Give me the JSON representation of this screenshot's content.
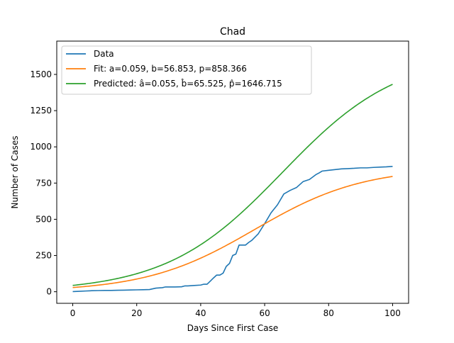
{
  "chart_data": {
    "type": "line",
    "title": "Chad",
    "xlabel": "Days Since First Case",
    "ylabel": "Number of Cases",
    "xlim": [
      -5,
      105
    ],
    "ylim": [
      -80,
      1730
    ],
    "x_ticks": [
      0,
      20,
      40,
      60,
      80,
      100
    ],
    "y_ticks": [
      0,
      250,
      500,
      750,
      1000,
      1250,
      1500
    ],
    "grid": false,
    "legend_position": "upper-left",
    "series": [
      {
        "name": "Data",
        "color": "#1f77b4",
        "x": [
          0,
          2,
          4,
          6,
          8,
          10,
          12,
          14,
          16,
          18,
          20,
          22,
          24,
          25,
          26,
          28,
          29,
          30,
          32,
          34,
          35,
          36,
          38,
          40,
          41,
          42,
          43,
          44,
          45,
          46,
          47,
          48,
          49,
          50,
          51,
          52,
          53,
          54,
          55,
          56,
          58,
          60,
          62,
          64,
          66,
          68,
          70,
          72,
          74,
          76,
          77,
          78,
          80,
          82,
          84,
          86,
          88,
          90,
          92,
          94,
          96,
          98,
          100
        ],
        "y": [
          1,
          3,
          5,
          7,
          8,
          9,
          9,
          10,
          11,
          12,
          13,
          14,
          15,
          20,
          25,
          28,
          33,
          33,
          33,
          34,
          40,
          40,
          43,
          46,
          52,
          52,
          73,
          95,
          115,
          115,
          128,
          175,
          195,
          250,
          260,
          322,
          322,
          322,
          340,
          355,
          400,
          470,
          545,
          600,
          675,
          700,
          720,
          760,
          775,
          808,
          820,
          833,
          838,
          843,
          848,
          850,
          852,
          855,
          855,
          858,
          860,
          862,
          865
        ]
      },
      {
        "name": "Fit: a=0.059, b=56.853, p=858.366",
        "color": "#ff7f0e",
        "logistic": {
          "a": 0.059,
          "b": 56.853,
          "p": 858.366
        }
      },
      {
        "name": "Predicted: â=0.055, b̂=65.525, p̂=1646.715",
        "color": "#2ca02c",
        "logistic": {
          "a": 0.055,
          "b": 65.525,
          "p": 1646.715
        }
      }
    ]
  }
}
